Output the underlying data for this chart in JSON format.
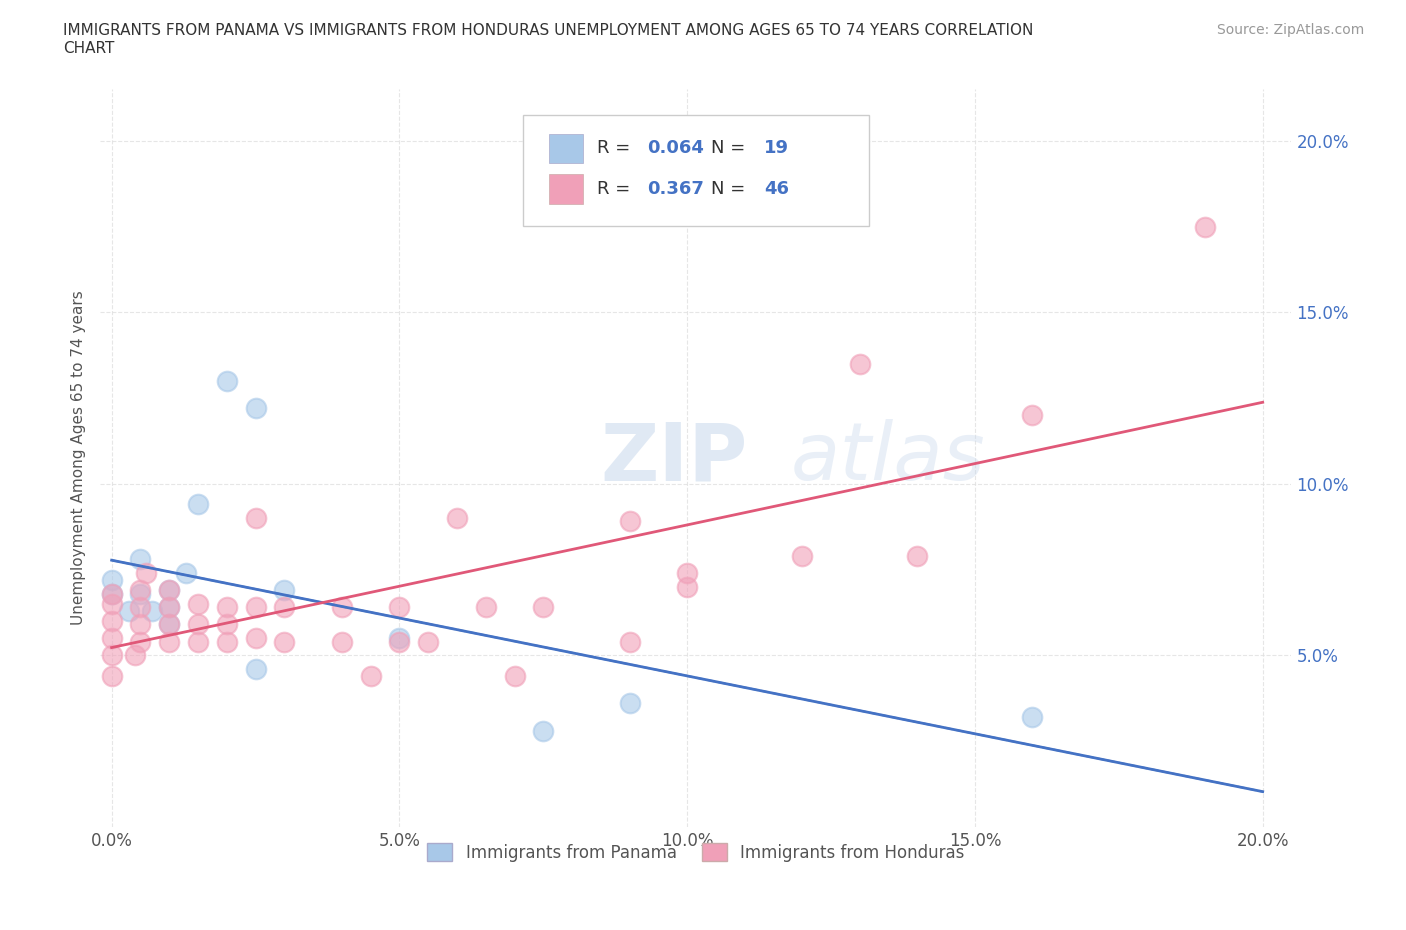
{
  "title": "IMMIGRANTS FROM PANAMA VS IMMIGRANTS FROM HONDURAS UNEMPLOYMENT AMONG AGES 65 TO 74 YEARS CORRELATION\nCHART",
  "source": "Source: ZipAtlas.com",
  "ylabel": "Unemployment Among Ages 65 to 74 years",
  "xlim": [
    -0.002,
    0.205
  ],
  "ylim": [
    0.0,
    0.215
  ],
  "xticks": [
    0.0,
    0.05,
    0.1,
    0.15,
    0.2
  ],
  "yticks": [
    0.05,
    0.1,
    0.15,
    0.2
  ],
  "xticklabels": [
    "0.0%",
    "5.0%",
    "10.0%",
    "15.0%",
    "20.0%"
  ],
  "yticklabels": [
    "5.0%",
    "10.0%",
    "15.0%",
    "20.0%"
  ],
  "watermark_top": "ZIP",
  "watermark_bot": "atlas",
  "panama_color": "#a8c8e8",
  "honduras_color": "#f0a0b8",
  "panama_line_color": "#4472c4",
  "honduras_line_color": "#e05878",
  "panama_R": 0.064,
  "panama_N": 19,
  "honduras_R": 0.367,
  "honduras_N": 46,
  "panama_scatter": [
    [
      0.0,
      0.068
    ],
    [
      0.0,
      0.072
    ],
    [
      0.003,
      0.063
    ],
    [
      0.005,
      0.068
    ],
    [
      0.005,
      0.078
    ],
    [
      0.007,
      0.063
    ],
    [
      0.01,
      0.059
    ],
    [
      0.01,
      0.064
    ],
    [
      0.01,
      0.069
    ],
    [
      0.013,
      0.074
    ],
    [
      0.015,
      0.094
    ],
    [
      0.02,
      0.13
    ],
    [
      0.025,
      0.122
    ],
    [
      0.025,
      0.046
    ],
    [
      0.03,
      0.069
    ],
    [
      0.05,
      0.055
    ],
    [
      0.075,
      0.028
    ],
    [
      0.09,
      0.036
    ],
    [
      0.16,
      0.032
    ]
  ],
  "honduras_scatter": [
    [
      0.0,
      0.044
    ],
    [
      0.0,
      0.05
    ],
    [
      0.0,
      0.055
    ],
    [
      0.0,
      0.06
    ],
    [
      0.0,
      0.065
    ],
    [
      0.0,
      0.068
    ],
    [
      0.004,
      0.05
    ],
    [
      0.005,
      0.054
    ],
    [
      0.005,
      0.059
    ],
    [
      0.005,
      0.064
    ],
    [
      0.005,
      0.069
    ],
    [
      0.006,
      0.074
    ],
    [
      0.01,
      0.054
    ],
    [
      0.01,
      0.059
    ],
    [
      0.01,
      0.064
    ],
    [
      0.01,
      0.069
    ],
    [
      0.015,
      0.054
    ],
    [
      0.015,
      0.059
    ],
    [
      0.015,
      0.065
    ],
    [
      0.02,
      0.054
    ],
    [
      0.02,
      0.059
    ],
    [
      0.02,
      0.064
    ],
    [
      0.025,
      0.055
    ],
    [
      0.025,
      0.064
    ],
    [
      0.025,
      0.09
    ],
    [
      0.03,
      0.054
    ],
    [
      0.03,
      0.064
    ],
    [
      0.04,
      0.054
    ],
    [
      0.04,
      0.064
    ],
    [
      0.045,
      0.044
    ],
    [
      0.05,
      0.054
    ],
    [
      0.05,
      0.064
    ],
    [
      0.055,
      0.054
    ],
    [
      0.06,
      0.09
    ],
    [
      0.065,
      0.064
    ],
    [
      0.07,
      0.044
    ],
    [
      0.075,
      0.064
    ],
    [
      0.09,
      0.089
    ],
    [
      0.09,
      0.054
    ],
    [
      0.1,
      0.07
    ],
    [
      0.1,
      0.074
    ],
    [
      0.12,
      0.079
    ],
    [
      0.13,
      0.135
    ],
    [
      0.14,
      0.079
    ],
    [
      0.16,
      0.12
    ],
    [
      0.19,
      0.175
    ]
  ],
  "background_color": "#ffffff",
  "grid_color": "#e0e0e0",
  "tick_color": "#4472c4",
  "label_color": "#555555"
}
